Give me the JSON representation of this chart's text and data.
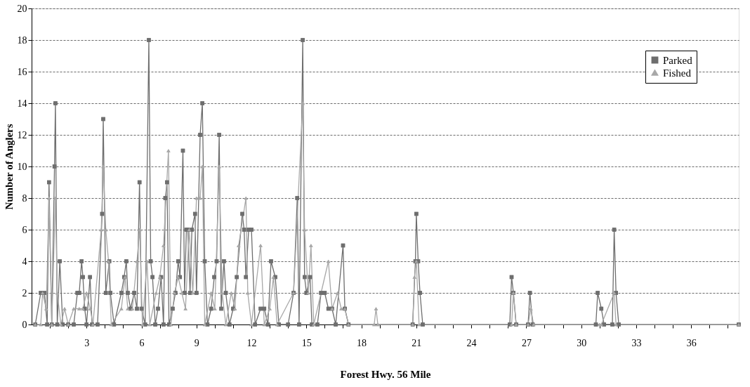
{
  "chart_data": {
    "type": "line",
    "xlabel": "Forest Hwy. 56 Mile",
    "ylabel": "Number of Anglers",
    "xlim": [
      0,
      38.6
    ],
    "ylim": [
      0,
      20
    ],
    "xticks": [
      {
        "value": 1,
        "label": null
      },
      {
        "value": 2,
        "label": null
      },
      3,
      {
        "value": 4,
        "label": null
      },
      {
        "value": 5,
        "label": null
      },
      6,
      {
        "value": 7,
        "label": null
      },
      {
        "value": 8,
        "label": null
      },
      9,
      {
        "value": 10,
        "label": null
      },
      {
        "value": 11,
        "label": null
      },
      12,
      {
        "value": 13,
        "label": null
      },
      {
        "value": 14,
        "label": null
      },
      15,
      {
        "value": 16,
        "label": null
      },
      {
        "value": 17,
        "label": null
      },
      18,
      {
        "value": 19,
        "label": null
      },
      {
        "value": 20,
        "label": null
      },
      21,
      {
        "value": 22,
        "label": null
      },
      {
        "value": 23,
        "label": null
      },
      24,
      {
        "value": 25,
        "label": null
      },
      {
        "value": 26,
        "label": null
      },
      27,
      {
        "value": 28,
        "label": null
      },
      {
        "value": 29,
        "label": null
      },
      30,
      {
        "value": 31,
        "label": null
      },
      {
        "value": 32,
        "label": null
      },
      33,
      {
        "value": 34,
        "label": null
      },
      {
        "value": 35,
        "label": null
      },
      36,
      {
        "value": 37,
        "label": null
      },
      {
        "value": 38,
        "label": null
      }
    ],
    "yticks": [
      0,
      2,
      4,
      6,
      8,
      10,
      12,
      14,
      16,
      18,
      20
    ],
    "grid": "y",
    "legend": "top right",
    "line_style": "solid",
    "series": [
      {
        "name": "Parked",
        "color": "#6e6e6e",
        "marker": "square",
        "x": [
          0.2,
          0.5,
          0.7,
          0.85,
          0.95,
          1.1,
          1.25,
          1.3,
          1.4,
          1.54,
          1.7,
          2.0,
          2.3,
          2.5,
          2.6,
          2.73,
          2.8,
          2.9,
          3.0,
          3.19,
          3.3,
          3.6,
          3.85,
          3.91,
          4.05,
          4.24,
          4.3,
          4.5,
          4.9,
          5.05,
          5.17,
          5.25,
          5.4,
          5.6,
          5.75,
          5.89,
          6.0,
          6.2,
          6.4,
          6.5,
          6.6,
          6.75,
          6.9,
          7.07,
          7.2,
          7.3,
          7.39,
          7.5,
          7.7,
          7.85,
          8.0,
          8.1,
          8.26,
          8.35,
          8.45,
          8.53,
          8.65,
          8.75,
          8.92,
          9.0,
          9.2,
          9.32,
          9.45,
          9.6,
          9.8,
          9.97,
          10.1,
          10.24,
          10.35,
          10.5,
          10.6,
          10.8,
          11.0,
          11.2,
          11.5,
          11.6,
          11.7,
          11.85,
          12.0,
          12.2,
          12.5,
          12.7,
          12.9,
          13.07,
          13.3,
          13.5,
          14.0,
          14.3,
          14.5,
          14.6,
          14.8,
          14.9,
          15.0,
          15.2,
          15.3,
          15.6,
          15.8,
          16.0,
          16.2,
          16.4,
          16.6,
          17.0,
          17.1,
          17.3,
          20.8,
          20.95,
          21.0,
          21.1,
          21.2,
          21.35,
          26.1,
          26.2,
          26.3,
          26.45,
          27.1,
          27.2,
          27.35,
          30.8,
          30.9,
          31.1,
          31.25,
          31.7,
          31.8,
          31.9,
          32.05,
          38.6
        ],
        "values": [
          0,
          2,
          2,
          0,
          9,
          0,
          10,
          14,
          0,
          4,
          0,
          0,
          0,
          2,
          2,
          4,
          3,
          1,
          0,
          3,
          0,
          0,
          7,
          13,
          2,
          4,
          2,
          0,
          2,
          3,
          4,
          2,
          1,
          2,
          1,
          9,
          1,
          0,
          18,
          4,
          3,
          0,
          1,
          3,
          0,
          8,
          9,
          0,
          1,
          2,
          4,
          3,
          11,
          2,
          6,
          6,
          2,
          6,
          7,
          2,
          12,
          14,
          4,
          0,
          1,
          3,
          4,
          12,
          1,
          4,
          2,
          0,
          1,
          3,
          7,
          6,
          3,
          6,
          6,
          0,
          1,
          1,
          0,
          4,
          3,
          0,
          0,
          2,
          8,
          0,
          18,
          3,
          2,
          3,
          0,
          0,
          2,
          2,
          1,
          1,
          0,
          5,
          1,
          0,
          0,
          4,
          7,
          4,
          2,
          0,
          0,
          3,
          2,
          0,
          0,
          2,
          0,
          0,
          2,
          1,
          0,
          0,
          6,
          2,
          0,
          0
        ]
      },
      {
        "name": "Fished",
        "color": "#a8a8a8",
        "marker": "triangle",
        "x": [
          0.2,
          0.5,
          0.6,
          0.8,
          0.95,
          1.1,
          1.3,
          1.4,
          1.6,
          1.8,
          2.0,
          2.3,
          2.6,
          2.8,
          3.0,
          3.2,
          3.35,
          3.8,
          3.91,
          4.05,
          4.2,
          4.35,
          4.9,
          5.1,
          5.25,
          5.5,
          5.75,
          5.9,
          6.05,
          6.3,
          6.45,
          6.8,
          7.0,
          7.2,
          7.47,
          7.6,
          7.8,
          8.0,
          8.2,
          8.4,
          8.6,
          8.8,
          9.0,
          9.2,
          9.32,
          9.45,
          9.8,
          10.0,
          10.24,
          10.4,
          10.6,
          10.9,
          11.1,
          11.3,
          11.7,
          11.8,
          12.0,
          12.5,
          12.7,
          13.0,
          13.2,
          13.4,
          14.3,
          14.8,
          14.9,
          15.1,
          15.25,
          15.4,
          16.2,
          16.4,
          16.7,
          16.9,
          17.1,
          17.3,
          18.7,
          18.8,
          18.9,
          20.8,
          20.9,
          21.0,
          21.15,
          26.2,
          26.3,
          26.45,
          27.1,
          27.25,
          27.4,
          31.0,
          31.1,
          31.8,
          31.9,
          38.6
        ],
        "values": [
          0,
          0,
          2,
          1,
          8,
          0,
          8,
          2,
          0,
          1,
          0,
          1,
          1,
          1,
          2,
          1,
          0,
          6,
          10,
          6,
          4,
          0,
          1,
          3,
          1,
          1,
          4,
          6,
          0,
          4,
          0,
          2,
          3,
          5,
          11,
          0,
          2,
          3,
          2,
          1,
          6,
          2,
          8,
          8,
          10,
          0,
          2,
          1,
          10,
          2,
          0,
          2,
          1,
          5,
          8,
          2,
          0,
          5,
          0,
          1,
          3,
          0,
          2,
          14,
          6,
          2,
          5,
          0,
          4,
          1,
          2,
          1,
          1,
          0,
          0,
          1,
          0,
          0,
          3,
          4,
          0,
          0,
          2,
          0,
          0,
          1,
          0,
          0,
          0,
          2,
          0,
          0
        ]
      }
    ]
  }
}
